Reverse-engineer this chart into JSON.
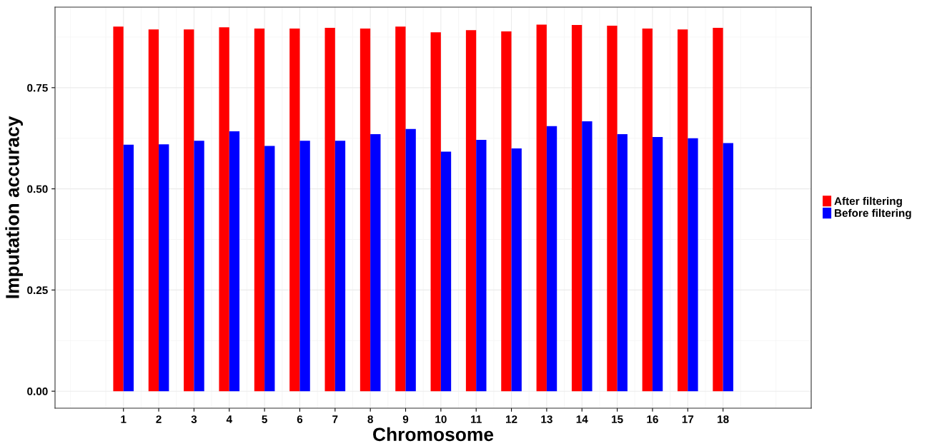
{
  "chart_data": {
    "type": "bar",
    "xlabel": "Chromosome",
    "ylabel": "Imputation accuracy",
    "categories": [
      "1",
      "2",
      "3",
      "4",
      "5",
      "6",
      "7",
      "8",
      "9",
      "10",
      "11",
      "12",
      "13",
      "14",
      "15",
      "16",
      "17",
      "18"
    ],
    "series": [
      {
        "name": "After filtering",
        "color": "#ff0000",
        "values": [
          0.901,
          0.894,
          0.894,
          0.899,
          0.896,
          0.896,
          0.898,
          0.896,
          0.901,
          0.887,
          0.892,
          0.889,
          0.906,
          0.905,
          0.903,
          0.896,
          0.894,
          0.898
        ]
      },
      {
        "name": "Before filtering",
        "color": "#0000ff",
        "values": [
          0.609,
          0.61,
          0.619,
          0.642,
          0.606,
          0.619,
          0.619,
          0.635,
          0.648,
          0.592,
          0.621,
          0.6,
          0.655,
          0.667,
          0.635,
          0.628,
          0.625,
          0.613
        ]
      }
    ],
    "ylim": [
      -0.042,
      0.949
    ],
    "yticks": [
      {
        "value": 0,
        "label": "0.00"
      },
      {
        "value": 0.25,
        "label": "0.25"
      },
      {
        "value": 0.5,
        "label": "0.50"
      },
      {
        "value": 0.75,
        "label": "0.75"
      }
    ],
    "grid": true,
    "legend": "right"
  }
}
